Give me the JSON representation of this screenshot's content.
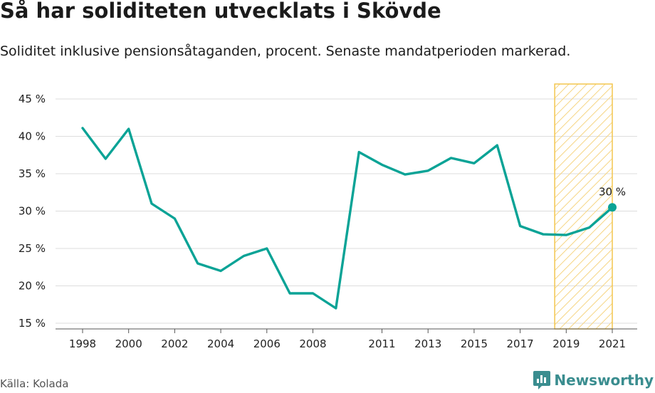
{
  "header": {
    "title": "Så har soliditeten utvecklats i Skövde",
    "subtitle": "Soliditet inklusive pensionsåtaganden, procent. Senaste mandatperioden markerad."
  },
  "footer": {
    "source": "Källa: Kolada",
    "brand": "Newsworthy",
    "brand_icon": "bar-chart-speech-bubble-icon"
  },
  "colors": {
    "line": "#0aa396",
    "highlight_stroke": "#f3c64e",
    "highlight_hatch": "#f6d582",
    "grid": "#dddddd",
    "brand": "#3a8d8f"
  },
  "chart_data": {
    "type": "line",
    "x": [
      1998,
      1999,
      2000,
      2001,
      2002,
      2003,
      2004,
      2005,
      2006,
      2007,
      2008,
      2009,
      2010,
      2011,
      2012,
      2013,
      2014,
      2015,
      2016,
      2017,
      2018,
      2019,
      2020,
      2021
    ],
    "series": [
      {
        "values": [
          41.1,
          37.0,
          41.0,
          31.0,
          29.0,
          23.0,
          22.0,
          24.0,
          25.0,
          19.0,
          19.0,
          17.0,
          37.9,
          36.2,
          34.9,
          35.4,
          37.1,
          36.4,
          38.8,
          28.0,
          26.9,
          26.8,
          27.8,
          30.5
        ]
      }
    ],
    "x_ticks": [
      "1998",
      "2000",
      "2002",
      "2004",
      "2006",
      "2008",
      "2011",
      "2013",
      "2015",
      "2017",
      "2019",
      "2021"
    ],
    "y_ticks": [
      "15 %",
      "20 %",
      "25 %",
      "30 %",
      "35 %",
      "40 %",
      "45 %"
    ],
    "xlim": [
      1996.9,
      2021.6
    ],
    "ylim": [
      15,
      45
    ],
    "grid": true,
    "highlight": {
      "from": 2018.5,
      "to": 2021.0
    },
    "end_label": "30 %"
  }
}
